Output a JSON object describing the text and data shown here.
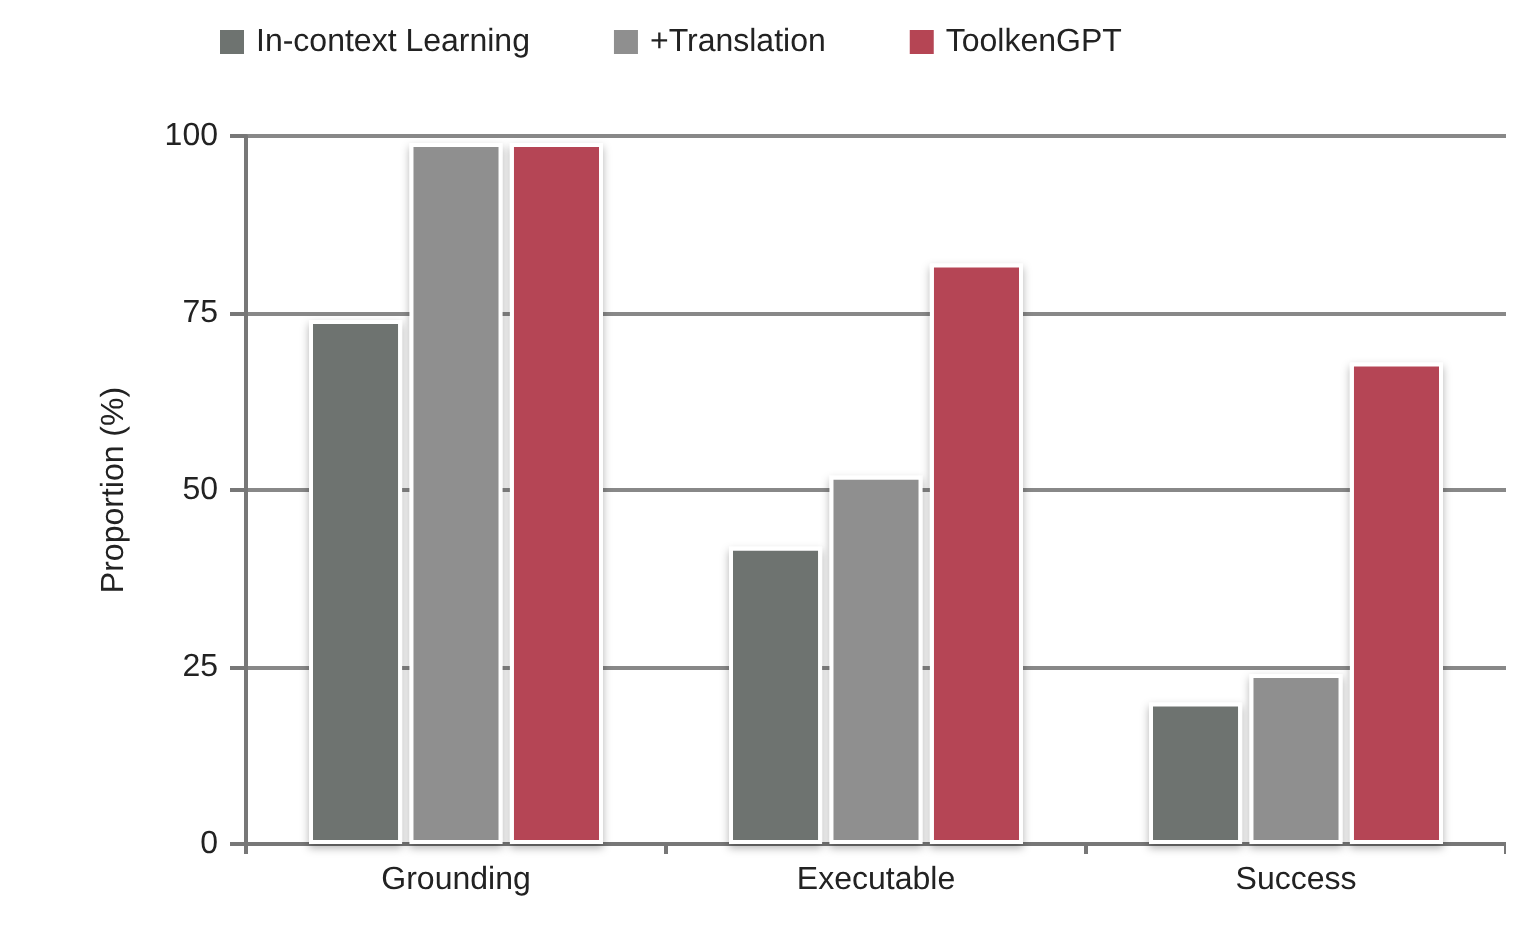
{
  "chart_data": {
    "type": "bar",
    "ylabel": "Proportion (%)",
    "categories": [
      "Grounding",
      "Executable",
      "Success"
    ],
    "series": [
      {
        "name": "In-context Learning",
        "color": "#6e7370",
        "values": [
          74,
          42,
          20
        ]
      },
      {
        "name": "+Translation",
        "color": "#8f8f8f",
        "values": [
          99,
          52,
          24
        ]
      },
      {
        "name": "ToolkenGPT",
        "color": "#b54554",
        "values": [
          99,
          82,
          68
        ]
      }
    ],
    "ylim": [
      0,
      100
    ],
    "yticks": [
      0,
      25,
      50,
      75,
      100
    ],
    "grid": "y",
    "legend": "top"
  }
}
